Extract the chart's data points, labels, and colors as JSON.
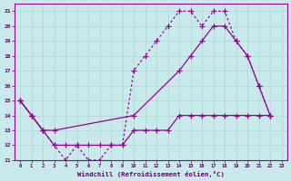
{
  "xlabel": "Windchill (Refroidissement éolien,°C)",
  "bg_color": "#c8eaea",
  "line_color": "#990099",
  "grid_color": "#b0d4d4",
  "xlim": [
    -0.5,
    23.5
  ],
  "ylim": [
    11,
    21.5
  ],
  "yticks": [
    11,
    12,
    13,
    14,
    15,
    16,
    17,
    18,
    19,
    20,
    21
  ],
  "xticks": [
    0,
    1,
    2,
    3,
    4,
    5,
    6,
    7,
    8,
    9,
    10,
    11,
    12,
    13,
    14,
    15,
    16,
    17,
    18,
    19,
    20,
    21,
    22,
    23
  ],
  "line1_x": [
    0,
    1,
    2,
    3,
    4,
    5,
    6,
    7,
    8,
    9,
    10,
    11,
    12,
    13,
    14,
    15,
    16,
    17,
    18,
    19,
    20,
    21,
    22
  ],
  "line1_y": [
    15,
    14,
    13,
    12,
    11,
    12,
    11,
    11,
    12,
    12,
    17,
    18,
    19,
    20,
    21,
    21,
    20,
    21,
    21,
    19,
    18,
    16,
    14
  ],
  "line2_x": [
    0,
    1,
    2,
    3,
    10,
    14,
    15,
    16,
    17,
    18,
    19,
    20,
    21,
    22
  ],
  "line2_y": [
    15,
    14,
    13,
    13,
    14,
    17,
    18,
    19,
    20,
    20,
    19,
    18,
    16,
    14
  ],
  "line3_x": [
    0,
    1,
    2,
    3,
    4,
    5,
    6,
    7,
    8,
    9,
    10,
    11,
    12,
    13,
    14,
    15,
    16,
    17,
    18,
    19,
    20,
    21,
    22
  ],
  "line3_y": [
    15,
    14,
    13,
    12,
    12,
    12,
    12,
    12,
    12,
    12,
    13,
    13,
    13,
    13,
    14,
    14,
    14,
    14,
    14,
    14,
    14,
    14,
    14
  ]
}
